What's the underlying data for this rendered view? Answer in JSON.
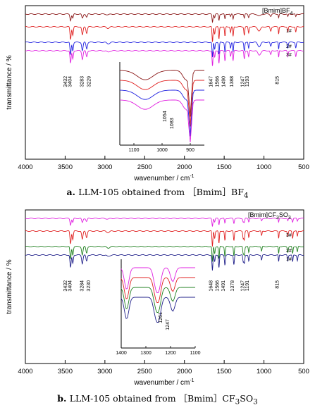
{
  "chart_data": [
    {
      "type": "line",
      "panel": "a",
      "caption": {
        "letter": "a.",
        "text": "LLM-105 obtained from ［Bmim］BF",
        "sub": "4"
      },
      "xlabel": "wavenumber / cm",
      "xlabel_sup": "-1",
      "ylabel": "transmittance / %",
      "xlim": [
        4000,
        500
      ],
      "xticks": [
        4000,
        3500,
        3000,
        2500,
        2000,
        1500,
        1000,
        500
      ],
      "legend": {
        "text": "[Bmim]BF",
        "sub": "4"
      },
      "series": [
        {
          "name": "",
          "color": "#8b1a1a",
          "offset": 0
        },
        {
          "name": "",
          "color": "#e02020",
          "offset": 1,
          "mark": "1#"
        },
        {
          "name": "",
          "color": "#2020e0",
          "offset": 2,
          "mark": "2#"
        },
        {
          "name": "",
          "color": "#e020e0",
          "offset": 3,
          "mark": "3#"
        }
      ],
      "peaks": [
        "3432",
        "3404",
        "3283",
        "3229",
        "1647",
        "1566",
        "1490",
        "1388",
        "1247",
        "1193",
        "815"
      ],
      "inset": {
        "xlim": [
          1150,
          850
        ],
        "xticks": [
          1100,
          1000,
          900
        ],
        "annotations": [
          "1054",
          "1083"
        ]
      }
    },
    {
      "type": "line",
      "panel": "b",
      "caption": {
        "letter": "b.",
        "text": "LLM-105 obtained from ［Bmim］CF",
        "sub": "3",
        "tail": "SO",
        "sub2": "3"
      },
      "xlabel": "wavenumber / cm",
      "xlabel_sup": "-1",
      "ylabel": "transmittance / %",
      "xlim": [
        4000,
        500
      ],
      "xticks": [
        4000,
        3500,
        3000,
        2500,
        2000,
        1500,
        1000,
        500
      ],
      "legend": {
        "text": "[Bmim]CF",
        "sub": "3",
        "tail": "SO",
        "sub2": "3"
      },
      "series": [
        {
          "name": "",
          "color": "#e020e0",
          "offset": 0
        },
        {
          "name": "",
          "color": "#e02020",
          "offset": 1,
          "mark": "3#"
        },
        {
          "name": "",
          "color": "#208020",
          "offset": 2,
          "mark": "2#"
        },
        {
          "name": "",
          "color": "#20208a",
          "offset": 3,
          "mark": "1#"
        }
      ],
      "peaks": [
        "3432",
        "3404",
        "3284",
        "3230",
        "1648",
        "1566",
        "1491",
        "1378",
        "1247",
        "1191",
        "815"
      ],
      "inset": {
        "xlim": [
          1400,
          1100
        ],
        "xticks": [
          1400,
          1300,
          1200,
          1100
        ],
        "annotations": [
          "1261",
          "1247"
        ]
      }
    }
  ]
}
